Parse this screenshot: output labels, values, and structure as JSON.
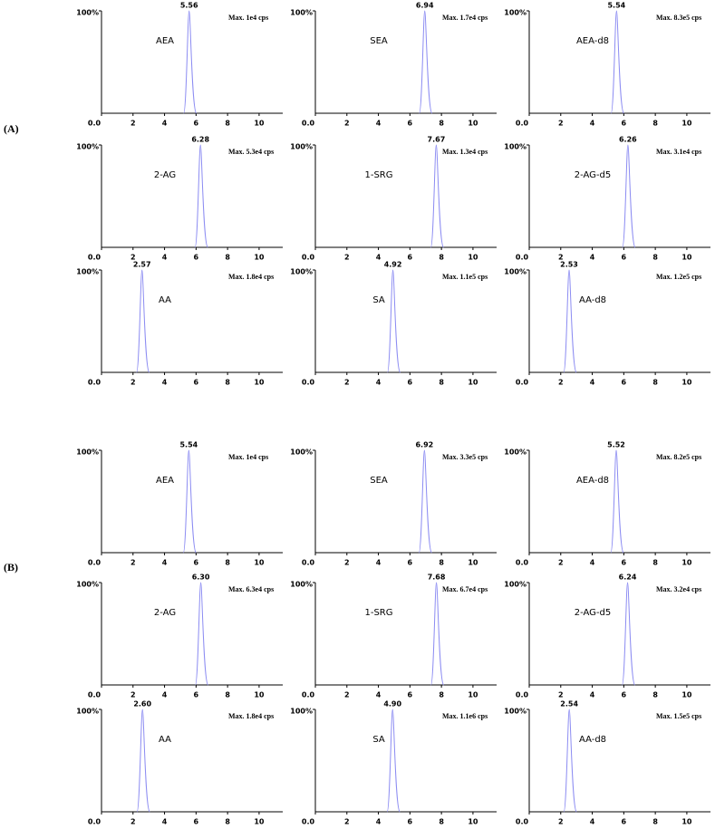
{
  "sections": [
    {
      "label": "(A)"
    },
    {
      "label": "(B)"
    }
  ],
  "chart_data": [
    {
      "type": "chromatogram",
      "annotation": "AEA",
      "max_label": "Max. 1e4 cps",
      "x": [
        5.56
      ],
      "values": [
        100
      ],
      "color": "#8c8cf2",
      "xlim": [
        0,
        11.5
      ],
      "xticks": [
        {
          "value": 0,
          "label": "0.0"
        },
        2,
        4,
        6,
        8,
        10
      ],
      "ylim": [
        0,
        100
      ],
      "yticks": [
        {
          "value": 100,
          "label": "100%"
        }
      ]
    },
    {
      "type": "chromatogram",
      "annotation": "SEA",
      "max_label": "Max. 1.7e4 cps",
      "x": [
        6.94
      ],
      "values": [
        100
      ],
      "color": "#8c8cf2",
      "xlim": [
        0,
        11.5
      ],
      "xticks": [
        {
          "value": 0,
          "label": "0.0"
        },
        2,
        4,
        6,
        8,
        10
      ],
      "ylim": [
        0,
        100
      ],
      "yticks": [
        {
          "value": 100,
          "label": "100%"
        }
      ]
    },
    {
      "type": "chromatogram",
      "annotation": "AEA-d8",
      "max_label": "Max. 8.3e5 cps",
      "x": [
        5.54
      ],
      "values": [
        100
      ],
      "color": "#8c8cf2",
      "xlim": [
        0,
        11.5
      ],
      "xticks": [
        {
          "value": 0,
          "label": "0.0"
        },
        2,
        4,
        6,
        8,
        10
      ],
      "ylim": [
        0,
        100
      ],
      "yticks": [
        {
          "value": 100,
          "label": "100%"
        }
      ]
    },
    {
      "type": "chromatogram",
      "annotation": "2-AG",
      "max_label": "Max. 5.3e4 cps",
      "x": [
        6.28
      ],
      "values": [
        100
      ],
      "color": "#8c8cf2",
      "xlim": [
        0,
        11.5
      ],
      "xticks": [
        {
          "value": 0,
          "label": "0.0"
        },
        2,
        4,
        6,
        8,
        10
      ],
      "ylim": [
        0,
        100
      ],
      "yticks": [
        {
          "value": 100,
          "label": "100%"
        }
      ]
    },
    {
      "type": "chromatogram",
      "annotation": "1-SRG",
      "max_label": "Max. 1.3e4 cps",
      "x": [
        7.67
      ],
      "values": [
        100
      ],
      "color": "#8c8cf2",
      "xlim": [
        0,
        11.5
      ],
      "xticks": [
        {
          "value": 0,
          "label": "0.0"
        },
        2,
        4,
        6,
        8,
        10
      ],
      "ylim": [
        0,
        100
      ],
      "yticks": [
        {
          "value": 100,
          "label": "100%"
        }
      ]
    },
    {
      "type": "chromatogram",
      "annotation": "2-AG-d5",
      "max_label": "Max. 3.1e4 cps",
      "x": [
        6.26
      ],
      "values": [
        100
      ],
      "color": "#8c8cf2",
      "xlim": [
        0,
        11.5
      ],
      "xticks": [
        {
          "value": 0,
          "label": "0.0"
        },
        2,
        4,
        6,
        8,
        10
      ],
      "ylim": [
        0,
        100
      ],
      "yticks": [
        {
          "value": 100,
          "label": "100%"
        }
      ]
    },
    {
      "type": "chromatogram",
      "annotation": "AA",
      "max_label": "Max. 1.8e4 cps",
      "x": [
        2.57
      ],
      "values": [
        100
      ],
      "color": "#8c8cf2",
      "xlim": [
        0,
        11.5
      ],
      "xticks": [
        {
          "value": 0,
          "label": "0.0"
        },
        2,
        4,
        6,
        8,
        10
      ],
      "ylim": [
        0,
        100
      ],
      "yticks": [
        {
          "value": 100,
          "label": "100%"
        }
      ]
    },
    {
      "type": "chromatogram",
      "annotation": "SA",
      "max_label": "Max. 1.1e5 cps",
      "x": [
        4.92
      ],
      "values": [
        100
      ],
      "color": "#8c8cf2",
      "xlim": [
        0,
        11.5
      ],
      "xticks": [
        {
          "value": 0,
          "label": "0.0"
        },
        2,
        4,
        6,
        8,
        10
      ],
      "ylim": [
        0,
        100
      ],
      "yticks": [
        {
          "value": 100,
          "label": "100%"
        }
      ]
    },
    {
      "type": "chromatogram",
      "annotation": "AA-d8",
      "max_label": "Max. 1.2e5 cps",
      "x": [
        2.53
      ],
      "values": [
        100
      ],
      "color": "#8c8cf2",
      "xlim": [
        0,
        11.5
      ],
      "xticks": [
        {
          "value": 0,
          "label": "0.0"
        },
        2,
        4,
        6,
        8,
        10
      ],
      "ylim": [
        0,
        100
      ],
      "yticks": [
        {
          "value": 100,
          "label": "100%"
        }
      ]
    },
    {
      "type": "chromatogram",
      "annotation": "AEA",
      "max_label": "Max. 1e4 cps",
      "x": [
        5.54
      ],
      "values": [
        100
      ],
      "color": "#8c8cf2",
      "xlim": [
        0,
        11.5
      ],
      "xticks": [
        {
          "value": 0,
          "label": "0.0"
        },
        2,
        4,
        6,
        8,
        10
      ],
      "ylim": [
        0,
        100
      ],
      "yticks": [
        {
          "value": 100,
          "label": "100%"
        }
      ]
    },
    {
      "type": "chromatogram",
      "annotation": "SEA",
      "max_label": "Max. 3.3e5 cps",
      "x": [
        6.92
      ],
      "values": [
        100
      ],
      "color": "#8c8cf2",
      "xlim": [
        0,
        11.5
      ],
      "xticks": [
        {
          "value": 0,
          "label": "0.0"
        },
        2,
        4,
        6,
        8,
        10
      ],
      "ylim": [
        0,
        100
      ],
      "yticks": [
        {
          "value": 100,
          "label": "100%"
        }
      ]
    },
    {
      "type": "chromatogram",
      "annotation": "AEA-d8",
      "max_label": "Max. 8.2e5 cps",
      "x": [
        5.52
      ],
      "values": [
        100
      ],
      "color": "#8c8cf2",
      "xlim": [
        0,
        11.5
      ],
      "xticks": [
        {
          "value": 0,
          "label": "0.0"
        },
        2,
        4,
        6,
        8,
        10
      ],
      "ylim": [
        0,
        100
      ],
      "yticks": [
        {
          "value": 100,
          "label": "100%"
        }
      ]
    },
    {
      "type": "chromatogram",
      "annotation": "2-AG",
      "max_label": "Max. 6.3e4 cps",
      "x": [
        6.3
      ],
      "x_labels": [
        "6.30"
      ],
      "values": [
        100
      ],
      "color": "#8c8cf2",
      "xlim": [
        0,
        11.5
      ],
      "xticks": [
        {
          "value": 0,
          "label": "0.0"
        },
        2,
        4,
        6,
        8,
        10
      ],
      "ylim": [
        0,
        100
      ],
      "yticks": [
        {
          "value": 100,
          "label": "100%"
        }
      ]
    },
    {
      "type": "chromatogram",
      "annotation": "1-SRG",
      "max_label": "Max. 6.7e4 cps",
      "x": [
        7.68
      ],
      "values": [
        100
      ],
      "color": "#8c8cf2",
      "xlim": [
        0,
        11.5
      ],
      "xticks": [
        {
          "value": 0,
          "label": "0.0"
        },
        2,
        4,
        6,
        8,
        10
      ],
      "ylim": [
        0,
        100
      ],
      "yticks": [
        {
          "value": 100,
          "label": "100%"
        }
      ]
    },
    {
      "type": "chromatogram",
      "annotation": "2-AG-d5",
      "max_label": "Max. 3.2e4 cps",
      "x": [
        6.24
      ],
      "values": [
        100
      ],
      "color": "#8c8cf2",
      "xlim": [
        0,
        11.5
      ],
      "xticks": [
        {
          "value": 0,
          "label": "0.0"
        },
        2,
        4,
        6,
        8,
        10
      ],
      "ylim": [
        0,
        100
      ],
      "yticks": [
        {
          "value": 100,
          "label": "100%"
        }
      ]
    },
    {
      "type": "chromatogram",
      "annotation": "AA",
      "max_label": "Max. 1.8e4 cps",
      "x": [
        2.6
      ],
      "x_labels": [
        "2.60"
      ],
      "values": [
        100
      ],
      "color": "#8c8cf2",
      "xlim": [
        0,
        11.5
      ],
      "xticks": [
        {
          "value": 0,
          "label": "0.0"
        },
        2,
        4,
        6,
        8,
        10
      ],
      "ylim": [
        0,
        100
      ],
      "yticks": [
        {
          "value": 100,
          "label": "100%"
        }
      ]
    },
    {
      "type": "chromatogram",
      "annotation": "SA",
      "max_label": "Max. 1.1e6 cps",
      "x": [
        4.9
      ],
      "x_labels": [
        "4.90"
      ],
      "values": [
        100
      ],
      "color": "#8c8cf2",
      "xlim": [
        0,
        11.5
      ],
      "xticks": [
        {
          "value": 0,
          "label": "0.0"
        },
        2,
        4,
        6,
        8,
        10
      ],
      "ylim": [
        0,
        100
      ],
      "yticks": [
        {
          "value": 100,
          "label": "100%"
        }
      ]
    },
    {
      "type": "chromatogram",
      "annotation": "AA-d8",
      "max_label": "Max. 1.5e5 cps",
      "x": [
        2.54
      ],
      "values": [
        100
      ],
      "color": "#8c8cf2",
      "xlim": [
        0,
        11.5
      ],
      "xticks": [
        {
          "value": 0,
          "label": "0.0"
        },
        2,
        4,
        6,
        8,
        10
      ],
      "ylim": [
        0,
        100
      ],
      "yticks": [
        {
          "value": 100,
          "label": "100%"
        }
      ]
    }
  ]
}
